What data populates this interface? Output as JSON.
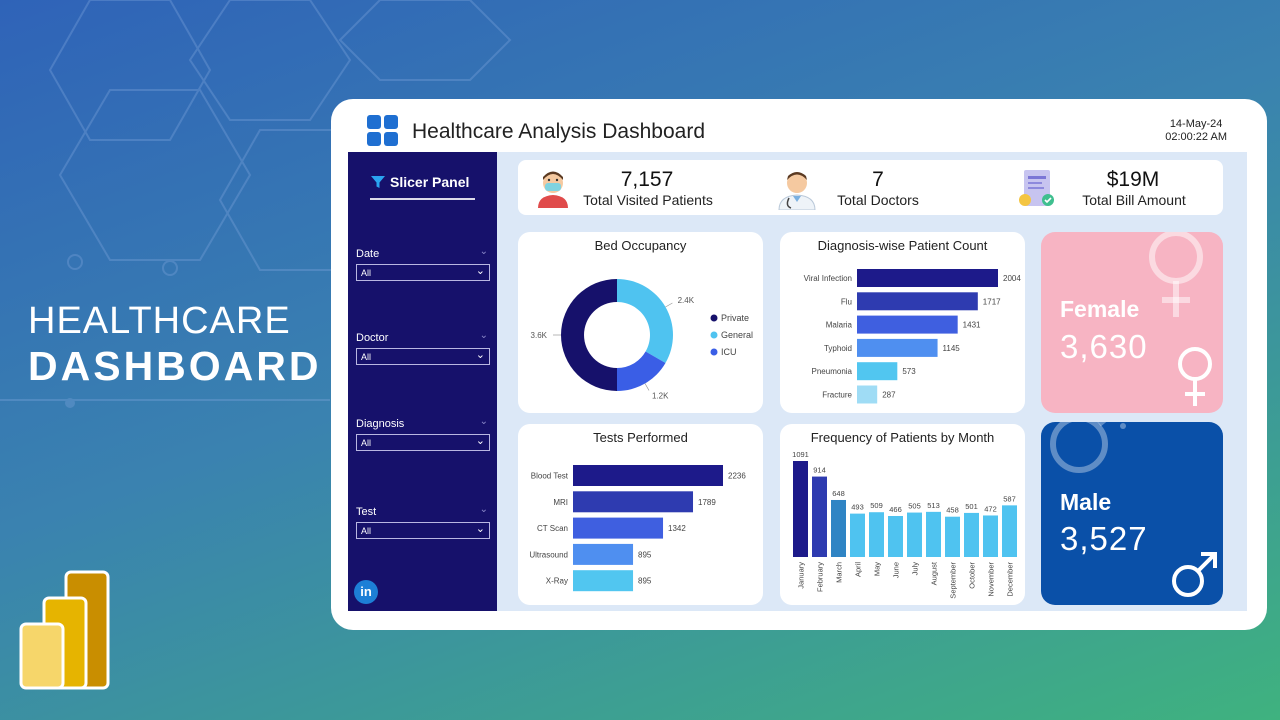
{
  "hero": {
    "line1": "HEALTHCARE",
    "line2": "DASHBOARD"
  },
  "header": {
    "title": "Healthcare Analysis Dashboard",
    "date": "14-May-24",
    "time": "02:00:22 AM"
  },
  "slicer": {
    "title": "Slicer Panel",
    "filters": [
      {
        "label": "Date",
        "value": "All"
      },
      {
        "label": "Doctor",
        "value": "All"
      },
      {
        "label": "Diagnosis",
        "value": "All"
      },
      {
        "label": "Test",
        "value": "All"
      }
    ],
    "linkedin": "in"
  },
  "kpis": [
    {
      "value": "7,157",
      "label": "Total Visited Patients",
      "icon": "patient-icon"
    },
    {
      "value": "7",
      "label": "Total Doctors",
      "icon": "doctor-icon"
    },
    {
      "value": "$19M",
      "label": "Total Bill Amount",
      "icon": "bill-icon"
    }
  ],
  "gender": {
    "female": {
      "label": "Female",
      "value": "3,630",
      "color": "#f7b4c3"
    },
    "male": {
      "label": "Male",
      "value": "3,527",
      "color": "#0a50a8"
    }
  },
  "colors": {
    "navy": "#16116b",
    "bar1": "#1d1a8a",
    "bar2": "#2e3bb0",
    "bar3": "#3f5fe0",
    "bar4": "#4f8ff0",
    "bar5": "#51c6f0",
    "bar6": "#9fdcf5"
  },
  "chart_data": [
    {
      "id": "bed",
      "type": "pie",
      "title": "Bed Occupancy",
      "categories": [
        "Private",
        "General",
        "ICU"
      ],
      "values": [
        3.6,
        2.4,
        1.2
      ],
      "labels": [
        "3.6K",
        "2.4K",
        "1.2K"
      ],
      "colors": [
        "#16116b",
        "#4fc3f0",
        "#3a5ee6"
      ],
      "legend": "right"
    },
    {
      "id": "diag",
      "type": "bar",
      "title": "Diagnosis-wise Patient Count",
      "categories": [
        "Viral Infection",
        "Flu",
        "Malaria",
        "Typhoid",
        "Pneumonia",
        "Fracture"
      ],
      "values": [
        2004,
        1717,
        1431,
        1145,
        573,
        287
      ],
      "orientation": "horizontal"
    },
    {
      "id": "tests",
      "type": "bar",
      "title": "Tests Performed",
      "categories": [
        "Blood Test",
        "MRI",
        "CT Scan",
        "Ultrasound",
        "X-Ray"
      ],
      "values": [
        2236,
        1789,
        1342,
        895,
        895
      ],
      "orientation": "horizontal"
    },
    {
      "id": "month",
      "type": "bar",
      "title": "Frequency of Patients by Month",
      "categories": [
        "January",
        "February",
        "March",
        "April",
        "May",
        "June",
        "July",
        "August",
        "September",
        "October",
        "November",
        "December"
      ],
      "values": [
        1091,
        914,
        648,
        493,
        509,
        466,
        505,
        513,
        458,
        501,
        472,
        587
      ],
      "orientation": "vertical"
    }
  ]
}
